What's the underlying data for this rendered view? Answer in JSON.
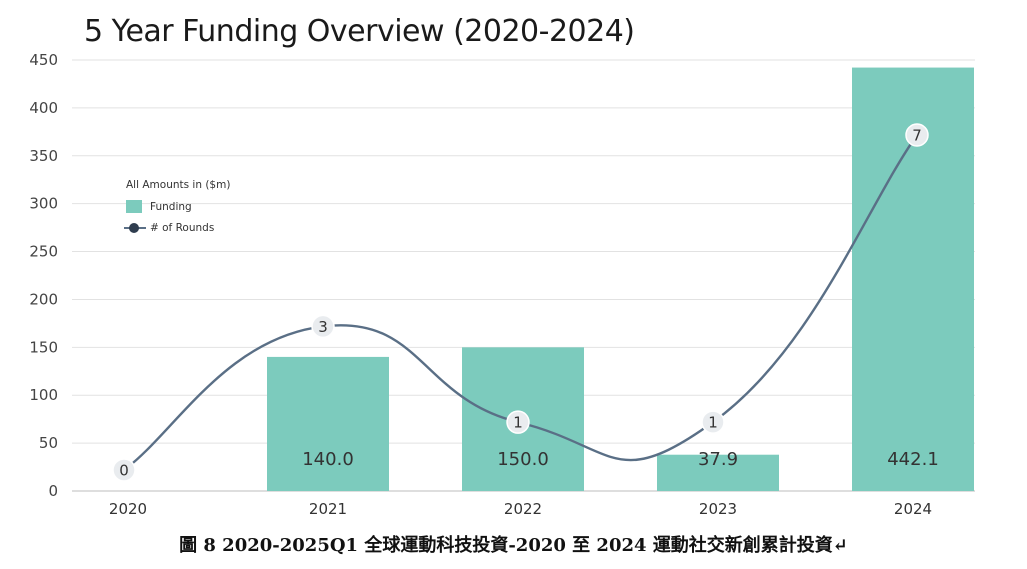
{
  "chart_data": {
    "type": "bar",
    "title": "5 Year Funding Overview (2020-2024)",
    "categories": [
      "2020",
      "2021",
      "2022",
      "2023",
      "2024"
    ],
    "ylim": [
      0,
      450
    ],
    "yticks": [
      0,
      50,
      100,
      150,
      200,
      250,
      300,
      350,
      400,
      450
    ],
    "grid": true,
    "series": [
      {
        "name": "Funding",
        "kind": "bar",
        "values": [
          0,
          140.0,
          150.0,
          37.9,
          442.1
        ],
        "labels": [
          "",
          "140.0",
          "150.0",
          "37.9",
          "442.1"
        ],
        "color": "#7ccbbd"
      },
      {
        "name": "# of Rounds",
        "kind": "line",
        "values": [
          0,
          3,
          1,
          1,
          7
        ],
        "labels": [
          "0",
          "3",
          "1",
          "1",
          "7"
        ],
        "color": "#5a6f86"
      }
    ],
    "legend_title": "All Amounts in ($m)",
    "legend_position": "left"
  },
  "caption": "圖 8 2020-2025Q1 全球運動科技投資-2020 至 2024 運動社交新創累計投資↵"
}
